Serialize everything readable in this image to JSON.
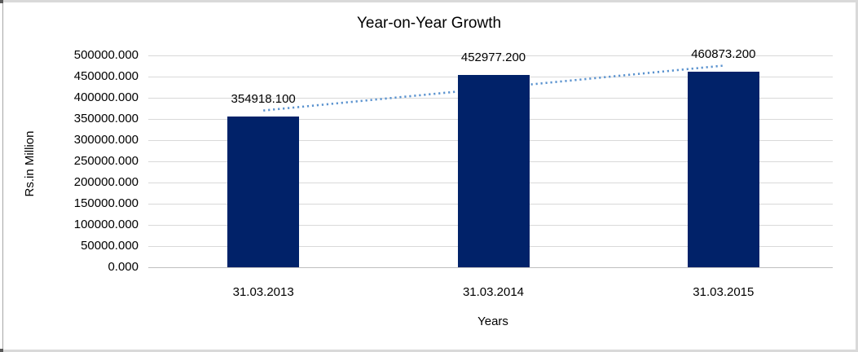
{
  "frame": {
    "border_color": "#d9d9d9",
    "left_line_color": "#a6a6a6"
  },
  "chart_data": {
    "type": "bar",
    "title": "Year-on-Year Growth",
    "xlabel": "Years",
    "ylabel": "Rs.in Million",
    "categories": [
      "31.03.2013",
      "31.03.2014",
      "31.03.2015"
    ],
    "series": [
      {
        "name": "Rs.in Million",
        "values": [
          354918.1,
          452977.2,
          460873.2
        ]
      }
    ],
    "data_labels": [
      "354918.100",
      "452977.200",
      "460873.200"
    ],
    "ylim": [
      0,
      500000
    ],
    "ytick_step": 50000,
    "ytick_labels": [
      "500000.000",
      "450000.000",
      "400000.000",
      "350000.000",
      "300000.000",
      "250000.000",
      "200000.000",
      "150000.000",
      "100000.000",
      "50000.000",
      "0.000"
    ],
    "grid": true,
    "legend": "none",
    "bar_color": "#012269",
    "grid_color": "#d9d9d9",
    "text_color": "#000000",
    "trendline": {
      "type": "linear",
      "style": "dotted",
      "color": "#5b93cf",
      "start_value": 369945,
      "end_value": 475900
    }
  }
}
